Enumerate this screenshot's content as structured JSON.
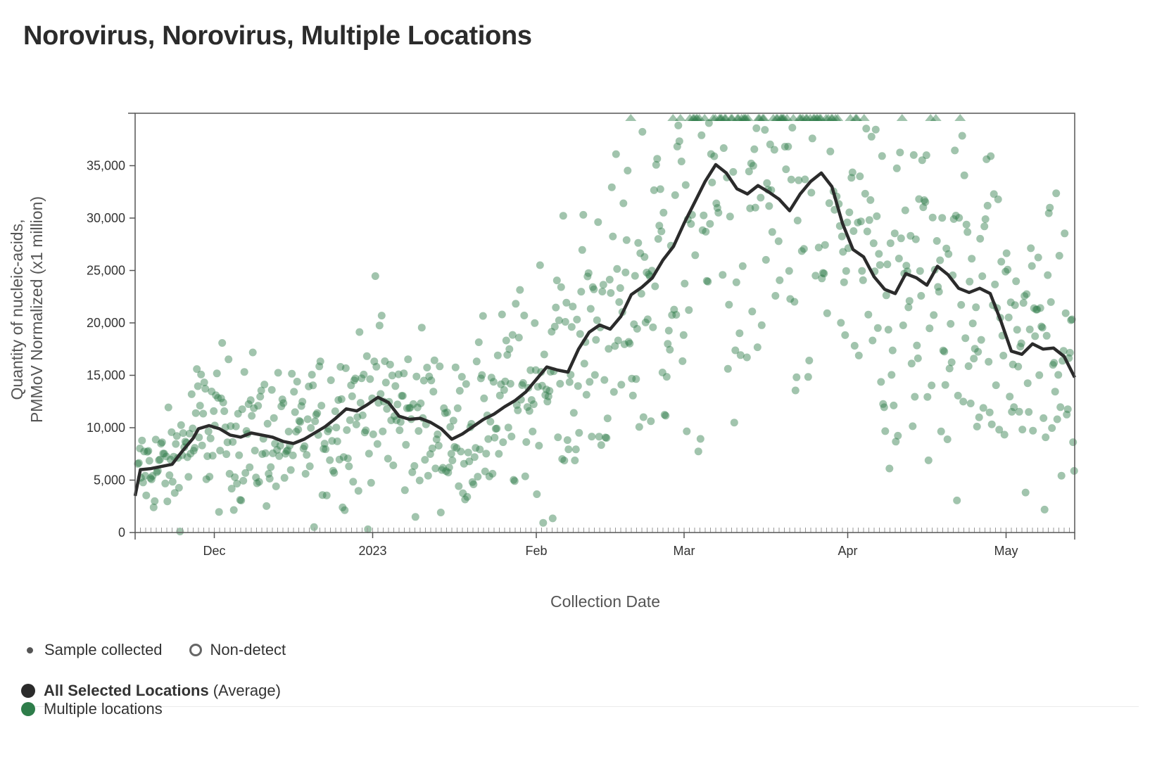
{
  "title": "Norovirus, Norovirus, Multiple Locations",
  "chart_data": {
    "type": "scatter",
    "ylabel_line1": "Quantity of nucleic-acids,",
    "ylabel_line2": "PMMoV Normalized (x1 million)",
    "xlabel": "Collection Date",
    "ylim": [
      0,
      40000
    ],
    "y_ticks": [
      0,
      5000,
      10000,
      15000,
      20000,
      25000,
      30000,
      35000
    ],
    "y_tick_labels": [
      "0",
      "5,000",
      "10,000",
      "15,000",
      "20,000",
      "25,000",
      "30,000",
      "35,000"
    ],
    "x_domain_days": [
      0,
      178
    ],
    "x_ticks": [
      {
        "day": 15,
        "label": "Dec"
      },
      {
        "day": 45,
        "label": "2023"
      },
      {
        "day": 76,
        "label": "Feb"
      },
      {
        "day": 104,
        "label": "Mar"
      },
      {
        "day": 135,
        "label": "Apr"
      },
      {
        "day": 165,
        "label": "May"
      }
    ],
    "x_origin_note": "day 0 = 2022-11-15",
    "series": [
      {
        "name": "All Selected Locations (Average)",
        "color": "#2b2b2b",
        "type": "line",
        "points": [
          [
            0,
            3500
          ],
          [
            1,
            6000
          ],
          [
            3,
            6100
          ],
          [
            5,
            6300
          ],
          [
            7,
            6500
          ],
          [
            9,
            7800
          ],
          [
            11,
            9000
          ],
          [
            12,
            9900
          ],
          [
            14,
            10200
          ],
          [
            16,
            9900
          ],
          [
            18,
            9300
          ],
          [
            20,
            9100
          ],
          [
            22,
            9500
          ],
          [
            24,
            9300
          ],
          [
            26,
            9100
          ],
          [
            28,
            8700
          ],
          [
            30,
            8500
          ],
          [
            32,
            8900
          ],
          [
            34,
            9500
          ],
          [
            36,
            10100
          ],
          [
            38,
            10900
          ],
          [
            40,
            11800
          ],
          [
            42,
            11600
          ],
          [
            44,
            12200
          ],
          [
            46,
            12900
          ],
          [
            48,
            12400
          ],
          [
            50,
            11100
          ],
          [
            52,
            10800
          ],
          [
            54,
            10900
          ],
          [
            56,
            10500
          ],
          [
            58,
            9900
          ],
          [
            60,
            8900
          ],
          [
            62,
            9400
          ],
          [
            64,
            10100
          ],
          [
            66,
            10800
          ],
          [
            68,
            11300
          ],
          [
            70,
            12000
          ],
          [
            72,
            12600
          ],
          [
            74,
            13400
          ],
          [
            76,
            14600
          ],
          [
            78,
            15800
          ],
          [
            80,
            15500
          ],
          [
            82,
            15300
          ],
          [
            84,
            17500
          ],
          [
            86,
            19100
          ],
          [
            88,
            19800
          ],
          [
            90,
            19400
          ],
          [
            92,
            20600
          ],
          [
            94,
            22700
          ],
          [
            96,
            23400
          ],
          [
            98,
            24300
          ],
          [
            100,
            26000
          ],
          [
            102,
            27300
          ],
          [
            104,
            29500
          ],
          [
            106,
            31500
          ],
          [
            108,
            33500
          ],
          [
            110,
            35100
          ],
          [
            112,
            34300
          ],
          [
            114,
            32800
          ],
          [
            116,
            32300
          ],
          [
            118,
            33100
          ],
          [
            120,
            32500
          ],
          [
            122,
            31800
          ],
          [
            124,
            30700
          ],
          [
            126,
            32300
          ],
          [
            128,
            33500
          ],
          [
            130,
            34300
          ],
          [
            132,
            33000
          ],
          [
            134,
            29500
          ],
          [
            136,
            27000
          ],
          [
            138,
            26300
          ],
          [
            140,
            24400
          ],
          [
            142,
            23200
          ],
          [
            144,
            22800
          ],
          [
            146,
            24700
          ],
          [
            148,
            24300
          ],
          [
            150,
            23600
          ],
          [
            152,
            25400
          ],
          [
            154,
            24600
          ],
          [
            156,
            23300
          ],
          [
            158,
            22900
          ],
          [
            160,
            23300
          ],
          [
            162,
            22800
          ],
          [
            164,
            20200
          ],
          [
            166,
            17300
          ],
          [
            168,
            17000
          ],
          [
            170,
            18000
          ],
          [
            172,
            17500
          ],
          [
            174,
            17600
          ],
          [
            176,
            16800
          ],
          [
            178,
            14800
          ]
        ]
      },
      {
        "name": "Multiple locations",
        "color": "#2e7d4a",
        "type": "scatter",
        "note": "several hundred individual site samples scattered around the average; values above 40,000 drawn as triangles at the top edge"
      }
    ],
    "legend": {
      "sample_collected": "Sample collected",
      "non_detect": "Non-detect",
      "all_selected_bold": "All Selected Locations",
      "all_selected_suffix": "(Average)",
      "multiple_locations": "Multiple locations"
    }
  }
}
